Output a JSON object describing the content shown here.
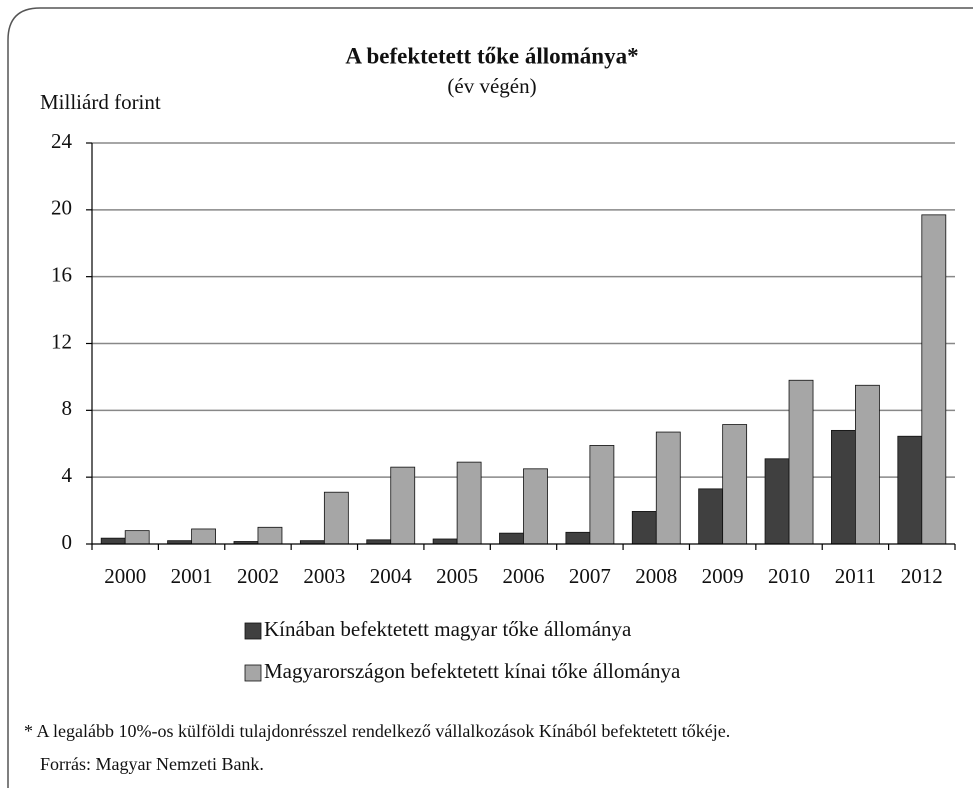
{
  "chart_data": {
    "type": "bar",
    "title": "A befektetett tőke állománya*",
    "subtitle": "(év végén)",
    "y_label": "Milliárd forint",
    "categories": [
      "2000",
      "2001",
      "2002",
      "2003",
      "2004",
      "2005",
      "2006",
      "2007",
      "2008",
      "2009",
      "2010",
      "2011",
      "2012"
    ],
    "series": [
      {
        "name": "Kínában befektetett magyar tőke állománya",
        "color": "#404040",
        "values": [
          0.35,
          0.2,
          0.15,
          0.2,
          0.25,
          0.3,
          0.65,
          0.7,
          1.95,
          3.3,
          5.1,
          6.8,
          6.45
        ]
      },
      {
        "name": "Magyarországon befektetett kínai tőke állománya",
        "color": "#a6a6a6",
        "values": [
          0.8,
          0.9,
          1.0,
          3.1,
          4.6,
          4.9,
          4.5,
          5.9,
          6.7,
          7.15,
          9.8,
          9.5,
          19.7
        ]
      }
    ],
    "ylim": [
      0,
      24
    ],
    "yticks": [
      0,
      4,
      8,
      12,
      16,
      20,
      24
    ],
    "grid": true,
    "footnote": "* A legalább 10%-os külföldi tulajdonrésszel rendelkező vállalkozások Kínából befektetett tőkéje.",
    "source": "Forrás: Magyar Nemzeti Bank."
  }
}
